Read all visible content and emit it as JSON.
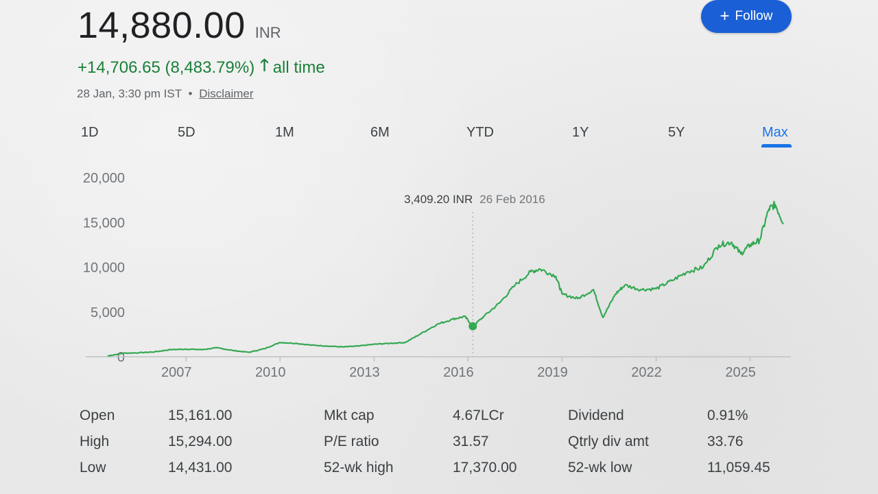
{
  "quote": {
    "price": "14,880.00",
    "currency": "INR",
    "change": "+14,706.65 (8,483.79%)",
    "change_period": "all time",
    "timestamp": "28 Jan, 3:30 pm IST",
    "separator": "•",
    "disclaimer": "Disclaimer",
    "up_color": "#188038"
  },
  "follow": {
    "label": "Follow",
    "icon": "plus-icon"
  },
  "ranges": [
    "1D",
    "5D",
    "1M",
    "6M",
    "YTD",
    "1Y",
    "5Y",
    "Max"
  ],
  "active_range": "Max",
  "tooltip": {
    "value": "3,409.20 INR",
    "date": "26 Feb 2016"
  },
  "stats": [
    {
      "label": "Open",
      "value": "15,161.00"
    },
    {
      "label": "High",
      "value": "15,294.00"
    },
    {
      "label": "Low",
      "value": "14,431.00"
    },
    {
      "label": "Mkt cap",
      "value": "4.67LCr"
    },
    {
      "label": "P/E ratio",
      "value": "31.57"
    },
    {
      "label": "52-wk high",
      "value": "17,370.00"
    },
    {
      "label": "Dividend",
      "value": "0.91%"
    },
    {
      "label": "Qtrly div amt",
      "value": "33.76"
    },
    {
      "label": "52-wk low",
      "value": "11,059.45"
    }
  ],
  "chart_data": {
    "type": "line",
    "series": [
      {
        "values": [
          [
            2004.5,
            100
          ],
          [
            2005,
            400
          ],
          [
            2005.5,
            450
          ],
          [
            2006,
            550
          ],
          [
            2006.5,
            800
          ],
          [
            2007,
            850
          ],
          [
            2007.5,
            800
          ],
          [
            2008,
            1000
          ],
          [
            2008.5,
            700
          ],
          [
            2009,
            500
          ],
          [
            2009.5,
            900
          ],
          [
            2010,
            1600
          ],
          [
            2010.5,
            1500
          ],
          [
            2011,
            1300
          ],
          [
            2011.5,
            1200
          ],
          [
            2012,
            1100
          ],
          [
            2012.5,
            1200
          ],
          [
            2013,
            1400
          ],
          [
            2013.5,
            1500
          ],
          [
            2014,
            1600
          ],
          [
            2014.5,
            2600
          ],
          [
            2015,
            3600
          ],
          [
            2015.5,
            4200
          ],
          [
            2015.9,
            4500
          ],
          [
            2016.15,
            3409.2
          ],
          [
            2016.5,
            4500
          ],
          [
            2017,
            6000
          ],
          [
            2017.5,
            8000
          ],
          [
            2018,
            9500
          ],
          [
            2018.3,
            9800
          ],
          [
            2018.8,
            9000
          ],
          [
            2019,
            7000
          ],
          [
            2019.5,
            6500
          ],
          [
            2020,
            7500
          ],
          [
            2020.3,
            4400
          ],
          [
            2020.7,
            7000
          ],
          [
            2021,
            8000
          ],
          [
            2021.5,
            7500
          ],
          [
            2022,
            7600
          ],
          [
            2022.5,
            8500
          ],
          [
            2023,
            9500
          ],
          [
            2023.5,
            10000
          ],
          [
            2024,
            12500
          ],
          [
            2024.4,
            12800
          ],
          [
            2024.7,
            11500
          ],
          [
            2025,
            12500
          ],
          [
            2025.3,
            13000
          ],
          [
            2025.6,
            16500
          ],
          [
            2025.8,
            17000
          ],
          [
            2026.07,
            14880
          ]
        ]
      }
    ],
    "x_ticks": [
      "2007",
      "2010",
      "2013",
      "2016",
      "2019",
      "2022",
      "2025"
    ],
    "x_tick_values": [
      2007,
      2010,
      2013,
      2016,
      2019,
      2022,
      2025
    ],
    "y_ticks": [
      "0",
      "5,000",
      "10,000",
      "15,000",
      "20,000"
    ],
    "y_tick_values": [
      0,
      5000,
      10000,
      15000,
      20000
    ],
    "xlim": [
      2003.8,
      2026.3
    ],
    "ylim": [
      0,
      20000
    ],
    "highlight": {
      "x": 2016.15,
      "y": 3409.2
    },
    "line_color": "#34a853",
    "grid": false
  }
}
